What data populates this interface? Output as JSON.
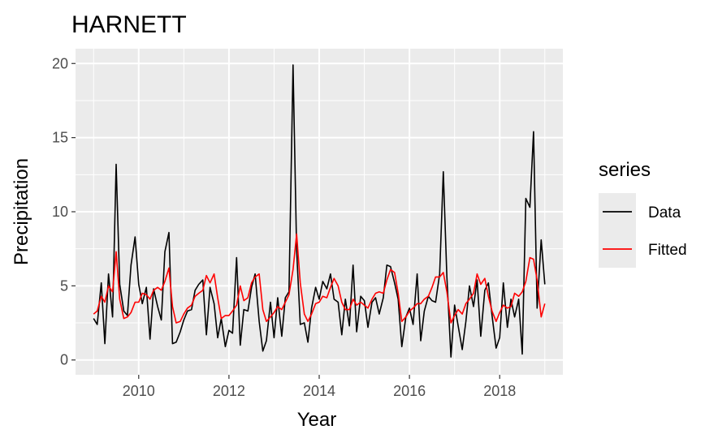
{
  "chart_data": {
    "type": "line",
    "title": "HARNETT",
    "xlabel": "Year",
    "ylabel": "Precipitation",
    "xlim": [
      2008.6,
      2019.4
    ],
    "ylim": [
      -1,
      21
    ],
    "xticks": [
      2010,
      2012,
      2014,
      2016,
      2018
    ],
    "xtick_labels": [
      "2010",
      "2012",
      "2014",
      "2016",
      "2018"
    ],
    "yticks": [
      0,
      5,
      10,
      15,
      20
    ],
    "ytick_labels": [
      "0",
      "5",
      "10",
      "15",
      "20"
    ],
    "grid": true,
    "legend": {
      "title": "series",
      "position": "right"
    },
    "series": [
      {
        "name": "Data",
        "color": "#000000",
        "points": [
          [
            2009.0,
            2.8
          ],
          [
            2009.08,
            2.4
          ],
          [
            2009.17,
            5.2
          ],
          [
            2009.25,
            1.1
          ],
          [
            2009.33,
            5.8
          ],
          [
            2009.42,
            2.9
          ],
          [
            2009.5,
            13.2
          ],
          [
            2009.58,
            5.1
          ],
          [
            2009.67,
            3.3
          ],
          [
            2009.75,
            3.0
          ],
          [
            2009.83,
            6.4
          ],
          [
            2009.92,
            8.3
          ],
          [
            2010.0,
            5.1
          ],
          [
            2010.08,
            3.8
          ],
          [
            2010.17,
            4.9
          ],
          [
            2010.25,
            1.4
          ],
          [
            2010.33,
            4.8
          ],
          [
            2010.42,
            3.6
          ],
          [
            2010.5,
            2.7
          ],
          [
            2010.58,
            7.3
          ],
          [
            2010.67,
            8.6
          ],
          [
            2010.75,
            1.1
          ],
          [
            2010.83,
            1.2
          ],
          [
            2010.92,
            1.9
          ],
          [
            2011.0,
            2.7
          ],
          [
            2011.08,
            3.3
          ],
          [
            2011.17,
            3.4
          ],
          [
            2011.25,
            4.7
          ],
          [
            2011.33,
            5.1
          ],
          [
            2011.42,
            5.4
          ],
          [
            2011.5,
            1.7
          ],
          [
            2011.58,
            4.9
          ],
          [
            2011.67,
            3.8
          ],
          [
            2011.75,
            1.5
          ],
          [
            2011.83,
            2.8
          ],
          [
            2011.92,
            0.9
          ],
          [
            2012.0,
            2.0
          ],
          [
            2012.08,
            1.8
          ],
          [
            2012.17,
            6.9
          ],
          [
            2012.25,
            1.0
          ],
          [
            2012.33,
            3.4
          ],
          [
            2012.42,
            3.3
          ],
          [
            2012.5,
            4.9
          ],
          [
            2012.58,
            5.8
          ],
          [
            2012.67,
            2.6
          ],
          [
            2012.75,
            0.6
          ],
          [
            2012.83,
            1.3
          ],
          [
            2012.92,
            3.9
          ],
          [
            2013.0,
            1.5
          ],
          [
            2013.08,
            4.2
          ],
          [
            2013.17,
            1.6
          ],
          [
            2013.25,
            4.2
          ],
          [
            2013.33,
            4.6
          ],
          [
            2013.42,
            19.9
          ],
          [
            2013.5,
            7.4
          ],
          [
            2013.58,
            2.4
          ],
          [
            2013.67,
            2.5
          ],
          [
            2013.75,
            1.2
          ],
          [
            2013.83,
            3.5
          ],
          [
            2013.92,
            4.9
          ],
          [
            2014.0,
            4.1
          ],
          [
            2014.08,
            5.3
          ],
          [
            2014.17,
            4.8
          ],
          [
            2014.25,
            5.8
          ],
          [
            2014.33,
            4.1
          ],
          [
            2014.42,
            3.9
          ],
          [
            2014.5,
            1.7
          ],
          [
            2014.58,
            4.1
          ],
          [
            2014.67,
            2.3
          ],
          [
            2014.75,
            6.4
          ],
          [
            2014.83,
            1.9
          ],
          [
            2014.92,
            4.3
          ],
          [
            2015.0,
            4.0
          ],
          [
            2015.08,
            2.2
          ],
          [
            2015.17,
            3.9
          ],
          [
            2015.25,
            4.2
          ],
          [
            2015.33,
            3.1
          ],
          [
            2015.42,
            4.2
          ],
          [
            2015.5,
            6.4
          ],
          [
            2015.58,
            6.3
          ],
          [
            2015.67,
            5.2
          ],
          [
            2015.75,
            4.1
          ],
          [
            2015.83,
            0.9
          ],
          [
            2015.92,
            2.9
          ],
          [
            2016.0,
            3.5
          ],
          [
            2016.08,
            2.4
          ],
          [
            2016.17,
            5.8
          ],
          [
            2016.25,
            1.3
          ],
          [
            2016.33,
            3.3
          ],
          [
            2016.42,
            4.3
          ],
          [
            2016.5,
            4.0
          ],
          [
            2016.58,
            3.9
          ],
          [
            2016.67,
            5.8
          ],
          [
            2016.75,
            12.7
          ],
          [
            2016.83,
            5.6
          ],
          [
            2016.92,
            0.2
          ],
          [
            2017.0,
            3.7
          ],
          [
            2017.08,
            2.3
          ],
          [
            2017.17,
            0.7
          ],
          [
            2017.25,
            2.6
          ],
          [
            2017.33,
            5.0
          ],
          [
            2017.42,
            3.6
          ],
          [
            2017.5,
            5.4
          ],
          [
            2017.58,
            1.6
          ],
          [
            2017.67,
            4.7
          ],
          [
            2017.75,
            5.2
          ],
          [
            2017.83,
            3.0
          ],
          [
            2017.92,
            0.8
          ],
          [
            2018.0,
            1.5
          ],
          [
            2018.08,
            5.2
          ],
          [
            2018.17,
            2.2
          ],
          [
            2018.25,
            4.1
          ],
          [
            2018.33,
            2.9
          ],
          [
            2018.42,
            4.1
          ],
          [
            2018.5,
            0.4
          ],
          [
            2018.58,
            10.9
          ],
          [
            2018.67,
            10.3
          ],
          [
            2018.75,
            15.4
          ],
          [
            2018.83,
            3.5
          ],
          [
            2018.92,
            8.1
          ],
          [
            2019.0,
            5.1
          ]
        ]
      },
      {
        "name": "Fitted",
        "color": "#ff0000",
        "points": [
          [
            2009.0,
            3.1
          ],
          [
            2009.08,
            3.3
          ],
          [
            2009.17,
            4.3
          ],
          [
            2009.25,
            3.9
          ],
          [
            2009.33,
            5.0
          ],
          [
            2009.42,
            4.6
          ],
          [
            2009.5,
            7.3
          ],
          [
            2009.58,
            4.1
          ],
          [
            2009.67,
            2.8
          ],
          [
            2009.75,
            2.9
          ],
          [
            2009.83,
            3.2
          ],
          [
            2009.92,
            3.9
          ],
          [
            2010.0,
            3.9
          ],
          [
            2010.08,
            4.5
          ],
          [
            2010.17,
            4.4
          ],
          [
            2010.25,
            4.1
          ],
          [
            2010.33,
            4.7
          ],
          [
            2010.42,
            4.9
          ],
          [
            2010.5,
            4.7
          ],
          [
            2010.58,
            5.3
          ],
          [
            2010.67,
            6.2
          ],
          [
            2010.75,
            3.6
          ],
          [
            2010.83,
            2.5
          ],
          [
            2010.92,
            2.6
          ],
          [
            2011.0,
            3.1
          ],
          [
            2011.08,
            3.5
          ],
          [
            2011.17,
            3.7
          ],
          [
            2011.25,
            4.3
          ],
          [
            2011.33,
            4.5
          ],
          [
            2011.42,
            4.7
          ],
          [
            2011.5,
            5.7
          ],
          [
            2011.58,
            5.2
          ],
          [
            2011.67,
            5.8
          ],
          [
            2011.75,
            4.2
          ],
          [
            2011.83,
            2.8
          ],
          [
            2011.92,
            3.0
          ],
          [
            2012.0,
            3.0
          ],
          [
            2012.08,
            3.3
          ],
          [
            2012.17,
            3.7
          ],
          [
            2012.25,
            5.0
          ],
          [
            2012.33,
            4.0
          ],
          [
            2012.42,
            4.2
          ],
          [
            2012.5,
            5.2
          ],
          [
            2012.58,
            5.6
          ],
          [
            2012.67,
            5.8
          ],
          [
            2012.75,
            3.4
          ],
          [
            2012.83,
            2.6
          ],
          [
            2012.92,
            2.9
          ],
          [
            2013.0,
            3.2
          ],
          [
            2013.08,
            3.6
          ],
          [
            2013.17,
            3.4
          ],
          [
            2013.25,
            3.9
          ],
          [
            2013.33,
            4.4
          ],
          [
            2013.42,
            6.1
          ],
          [
            2013.5,
            8.5
          ],
          [
            2013.58,
            5.2
          ],
          [
            2013.67,
            3.1
          ],
          [
            2013.75,
            2.6
          ],
          [
            2013.83,
            3.1
          ],
          [
            2013.92,
            3.8
          ],
          [
            2014.0,
            3.9
          ],
          [
            2014.08,
            4.3
          ],
          [
            2014.17,
            4.2
          ],
          [
            2014.25,
            4.9
          ],
          [
            2014.33,
            5.5
          ],
          [
            2014.42,
            5.0
          ],
          [
            2014.5,
            3.9
          ],
          [
            2014.58,
            3.4
          ],
          [
            2014.67,
            3.4
          ],
          [
            2014.75,
            4.1
          ],
          [
            2014.83,
            3.7
          ],
          [
            2014.92,
            3.9
          ],
          [
            2015.0,
            3.7
          ],
          [
            2015.08,
            3.5
          ],
          [
            2015.17,
            4.1
          ],
          [
            2015.25,
            4.5
          ],
          [
            2015.33,
            4.6
          ],
          [
            2015.42,
            4.5
          ],
          [
            2015.5,
            5.4
          ],
          [
            2015.58,
            6.1
          ],
          [
            2015.67,
            5.9
          ],
          [
            2015.75,
            4.5
          ],
          [
            2015.83,
            2.6
          ],
          [
            2015.92,
            2.9
          ],
          [
            2016.0,
            3.3
          ],
          [
            2016.08,
            3.5
          ],
          [
            2016.17,
            3.8
          ],
          [
            2016.25,
            3.8
          ],
          [
            2016.33,
            4.1
          ],
          [
            2016.42,
            4.3
          ],
          [
            2016.5,
            4.9
          ],
          [
            2016.58,
            5.6
          ],
          [
            2016.67,
            5.6
          ],
          [
            2016.75,
            5.9
          ],
          [
            2016.83,
            4.6
          ],
          [
            2016.92,
            2.5
          ],
          [
            2017.0,
            3.0
          ],
          [
            2017.08,
            3.4
          ],
          [
            2017.17,
            3.1
          ],
          [
            2017.25,
            3.8
          ],
          [
            2017.33,
            4.1
          ],
          [
            2017.42,
            4.5
          ],
          [
            2017.5,
            5.8
          ],
          [
            2017.58,
            5.1
          ],
          [
            2017.67,
            5.5
          ],
          [
            2017.75,
            4.3
          ],
          [
            2017.83,
            3.3
          ],
          [
            2017.92,
            2.6
          ],
          [
            2018.0,
            3.2
          ],
          [
            2018.08,
            3.7
          ],
          [
            2018.17,
            3.5
          ],
          [
            2018.25,
            3.6
          ],
          [
            2018.33,
            4.5
          ],
          [
            2018.42,
            4.3
          ],
          [
            2018.5,
            4.6
          ],
          [
            2018.58,
            5.3
          ],
          [
            2018.67,
            6.9
          ],
          [
            2018.75,
            6.8
          ],
          [
            2018.83,
            5.4
          ],
          [
            2018.92,
            2.9
          ],
          [
            2019.0,
            3.8
          ]
        ]
      }
    ]
  }
}
